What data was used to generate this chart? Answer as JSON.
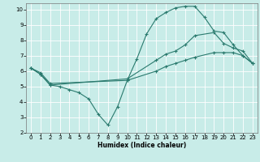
{
  "xlabel": "Humidex (Indice chaleur)",
  "background_color": "#c8ece8",
  "grid_color": "#ffffff",
  "line_color": "#2a7a6e",
  "xlim": [
    -0.5,
    23.5
  ],
  "ylim": [
    2,
    10.4
  ],
  "yticks": [
    2,
    3,
    4,
    5,
    6,
    7,
    8,
    9,
    10
  ],
  "xticks": [
    0,
    1,
    2,
    3,
    4,
    5,
    6,
    7,
    8,
    9,
    10,
    11,
    12,
    13,
    14,
    15,
    16,
    17,
    18,
    19,
    20,
    21,
    22,
    23
  ],
  "line1_x": [
    0,
    1,
    2,
    3,
    4,
    5,
    6,
    7,
    8,
    9,
    10,
    11,
    12,
    13,
    14,
    15,
    16,
    17,
    18,
    19,
    20,
    21,
    22,
    23
  ],
  "line1_y": [
    6.2,
    5.8,
    5.1,
    5.0,
    4.8,
    4.6,
    4.2,
    3.2,
    2.5,
    3.7,
    5.4,
    6.8,
    8.4,
    9.4,
    9.8,
    10.1,
    10.2,
    10.2,
    9.5,
    8.6,
    8.5,
    7.7,
    7.0,
    6.5
  ],
  "line2_x": [
    0,
    1,
    2,
    10,
    13,
    14,
    15,
    16,
    17,
    19,
    20,
    21,
    22,
    23
  ],
  "line2_y": [
    6.2,
    5.8,
    5.1,
    5.5,
    6.7,
    7.1,
    7.3,
    7.7,
    8.3,
    8.5,
    7.8,
    7.5,
    7.3,
    6.5
  ],
  "line3_x": [
    0,
    1,
    2,
    10,
    13,
    14,
    15,
    16,
    17,
    19,
    20,
    21,
    22,
    23
  ],
  "line3_y": [
    6.2,
    5.9,
    5.2,
    5.4,
    6.0,
    6.3,
    6.5,
    6.7,
    6.9,
    7.2,
    7.2,
    7.2,
    7.0,
    6.5
  ]
}
